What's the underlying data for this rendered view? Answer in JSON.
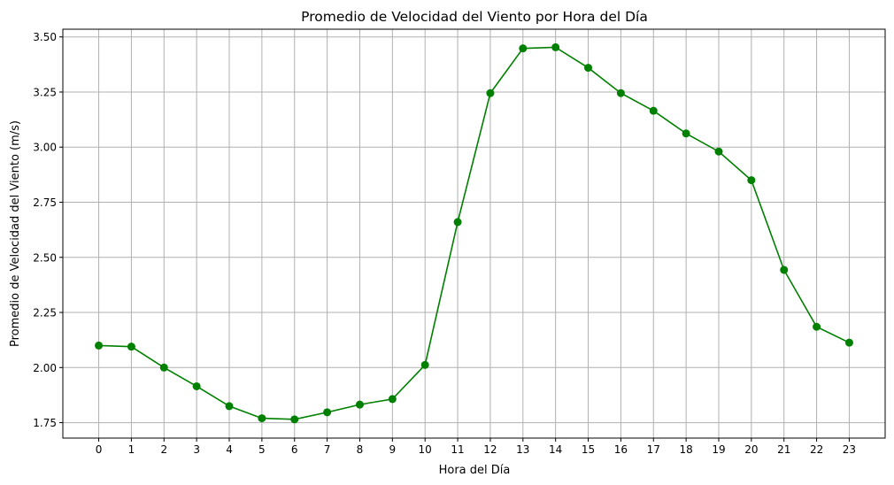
{
  "chart_data": {
    "type": "line",
    "title": "Promedio de Velocidad del Viento por Hora del Día",
    "xlabel": "Hora del Día",
    "ylabel": "Promedio de Velocidad del Viento (m/s)",
    "x": [
      0,
      1,
      2,
      3,
      4,
      5,
      6,
      7,
      8,
      9,
      10,
      11,
      12,
      13,
      14,
      15,
      16,
      17,
      18,
      19,
      20,
      21,
      22,
      23
    ],
    "x_tick_labels": [
      "0",
      "1",
      "2",
      "3",
      "4",
      "5",
      "6",
      "7",
      "8",
      "9",
      "10",
      "11",
      "12",
      "13",
      "14",
      "15",
      "16",
      "17",
      "18",
      "19",
      "20",
      "21",
      "22",
      "23"
    ],
    "y_tick_labels": [
      "1.75",
      "2.00",
      "2.25",
      "2.50",
      "2.75",
      "3.00",
      "3.25",
      "3.50"
    ],
    "y_ticks": [
      1.75,
      2.0,
      2.25,
      2.5,
      2.75,
      3.0,
      3.25,
      3.5
    ],
    "xlim": [
      -1.1,
      24.1
    ],
    "ylim": [
      1.68,
      3.535
    ],
    "grid": true,
    "series": [
      {
        "color": "#008000",
        "marker": "circle",
        "values": [
          2.1,
          2.095,
          2.0,
          1.915,
          1.825,
          1.77,
          1.765,
          1.797,
          1.832,
          1.857,
          2.012,
          2.66,
          3.245,
          3.448,
          3.453,
          3.36,
          3.245,
          3.165,
          3.062,
          2.98,
          2.85,
          2.443,
          2.185,
          2.113
        ]
      }
    ]
  }
}
